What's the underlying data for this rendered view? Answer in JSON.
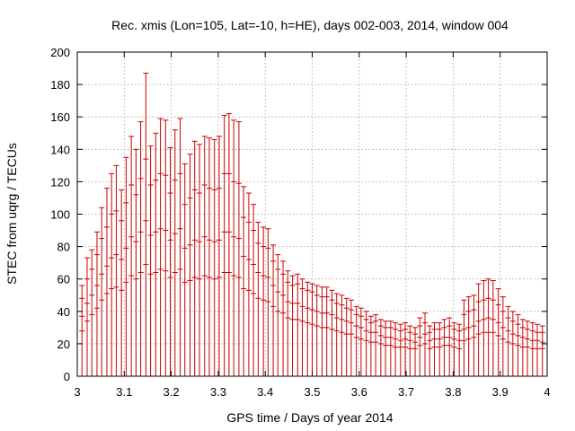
{
  "chart_data": {
    "type": "errorbar",
    "title": "Rec. xmis (Lon=105, Lat=-10, h=HE), days 002-003, 2014, window 004",
    "xlabel": "GPS time / Days of year 2014",
    "ylabel": "STEC from uqrg / TECUs",
    "xlim": [
      3,
      4
    ],
    "ylim": [
      0,
      200
    ],
    "xticks": [
      3,
      3.1,
      3.2,
      3.3,
      3.4,
      3.5,
      3.6,
      3.7,
      3.8,
      3.9,
      4
    ],
    "xtick_labels": [
      "3",
      "3.1",
      "3.2",
      "3.3",
      "3.4",
      "3.5",
      "3.6",
      "3.7",
      "3.8",
      "3.9",
      "4"
    ],
    "yticks": [
      0,
      20,
      40,
      60,
      80,
      100,
      120,
      140,
      160,
      180,
      200
    ],
    "ytick_labels": [
      "0",
      "20",
      "40",
      "60",
      "80",
      "100",
      "120",
      "140",
      "160",
      "180",
      "200"
    ],
    "grid": true,
    "color": "#cc0000",
    "x": [
      3.01,
      3.021,
      3.031,
      3.042,
      3.052,
      3.063,
      3.073,
      3.083,
      3.094,
      3.104,
      3.115,
      3.125,
      3.135,
      3.146,
      3.156,
      3.167,
      3.177,
      3.188,
      3.198,
      3.208,
      3.219,
      3.229,
      3.24,
      3.25,
      3.26,
      3.271,
      3.281,
      3.292,
      3.302,
      3.313,
      3.323,
      3.333,
      3.344,
      3.354,
      3.365,
      3.375,
      3.385,
      3.396,
      3.406,
      3.417,
      3.427,
      3.438,
      3.448,
      3.458,
      3.469,
      3.479,
      3.49,
      3.5,
      3.51,
      3.521,
      3.531,
      3.542,
      3.552,
      3.563,
      3.573,
      3.583,
      3.594,
      3.604,
      3.615,
      3.625,
      3.635,
      3.646,
      3.656,
      3.667,
      3.677,
      3.688,
      3.698,
      3.708,
      3.719,
      3.729,
      3.74,
      3.75,
      3.76,
      3.771,
      3.781,
      3.792,
      3.802,
      3.813,
      3.823,
      3.833,
      3.844,
      3.854,
      3.865,
      3.875,
      3.885,
      3.896,
      3.906,
      3.917,
      3.927,
      3.938,
      3.948,
      3.958,
      3.969,
      3.979,
      3.99
    ],
    "series": [
      {
        "name": "upper",
        "values": [
          56,
          73,
          78,
          89,
          104,
          116,
          125,
          130,
          115,
          135,
          148,
          140,
          157,
          187,
          142,
          150,
          159,
          158,
          141,
          152,
          159,
          131,
          137,
          145,
          143,
          148,
          147,
          146,
          148,
          161,
          162,
          158,
          157,
          117,
          113,
          106,
          95,
          92,
          91,
          81,
          75,
          71,
          65,
          62,
          63,
          60,
          58,
          57,
          56,
          55,
          55,
          53,
          51,
          50,
          48,
          47,
          43,
          42,
          40,
          37,
          38,
          35,
          34,
          34,
          33,
          32,
          33,
          31,
          30,
          36,
          39,
          31,
          33,
          33,
          35,
          36,
          33,
          32,
          47,
          49,
          50,
          57,
          59,
          60,
          59,
          54,
          49,
          43,
          40,
          38,
          35,
          34,
          33,
          32,
          31
        ]
      },
      {
        "name": "mid_upper",
        "values": [
          48,
          60,
          66,
          75,
          85,
          92,
          100,
          102,
          96,
          107,
          118,
          112,
          122,
          134,
          118,
          121,
          125,
          124,
          113,
          121,
          125,
          106,
          110,
          115,
          113,
          118,
          116,
          115,
          116,
          125,
          125,
          120,
          119,
          98,
          95,
          90,
          82,
          80,
          79,
          71,
          66,
          63,
          58,
          56,
          57,
          54,
          53,
          52,
          50,
          49,
          49,
          47,
          45,
          44,
          42,
          41,
          38,
          37,
          35,
          33,
          34,
          31,
          30,
          30,
          29,
          28,
          29,
          27,
          26,
          31,
          33,
          27,
          29,
          29,
          30,
          31,
          29,
          28,
          38,
          40,
          41,
          46,
          47,
          48,
          47,
          44,
          40,
          36,
          34,
          32,
          30,
          29,
          28,
          27,
          27
        ]
      },
      {
        "name": "mid_lower",
        "values": [
          37,
          45,
          50,
          56,
          63,
          68,
          73,
          75,
          72,
          79,
          86,
          83,
          89,
          96,
          87,
          89,
          91,
          90,
          84,
          88,
          91,
          79,
          81,
          84,
          83,
          86,
          84,
          83,
          84,
          89,
          89,
          86,
          85,
          74,
          72,
          69,
          64,
          62,
          61,
          56,
          52,
          50,
          46,
          45,
          45,
          43,
          42,
          41,
          40,
          39,
          39,
          38,
          36,
          35,
          34,
          33,
          31,
          30,
          28,
          27,
          27,
          25,
          24,
          24,
          23,
          22,
          23,
          22,
          21,
          24,
          26,
          22,
          23,
          23,
          24,
          24,
          23,
          22,
          29,
          30,
          31,
          34,
          35,
          36,
          35,
          33,
          30,
          28,
          26,
          25,
          24,
          23,
          22,
          22,
          21
        ]
      },
      {
        "name": "lower",
        "values": [
          28,
          34,
          38,
          42,
          47,
          51,
          54,
          55,
          53,
          58,
          62,
          60,
          64,
          69,
          63,
          64,
          66,
          65,
          61,
          64,
          66,
          58,
          59,
          61,
          60,
          62,
          61,
          60,
          61,
          64,
          64,
          62,
          61,
          54,
          53,
          51,
          48,
          47,
          46,
          43,
          40,
          39,
          36,
          35,
          35,
          34,
          33,
          32,
          31,
          30,
          30,
          29,
          28,
          27,
          26,
          26,
          24,
          23,
          22,
          21,
          21,
          20,
          19,
          19,
          18,
          18,
          18,
          17,
          17,
          19,
          20,
          17,
          18,
          18,
          19,
          19,
          18,
          17,
          22,
          23,
          24,
          26,
          27,
          27,
          27,
          25,
          23,
          21,
          20,
          19,
          18,
          18,
          17,
          17,
          17
        ]
      }
    ]
  }
}
